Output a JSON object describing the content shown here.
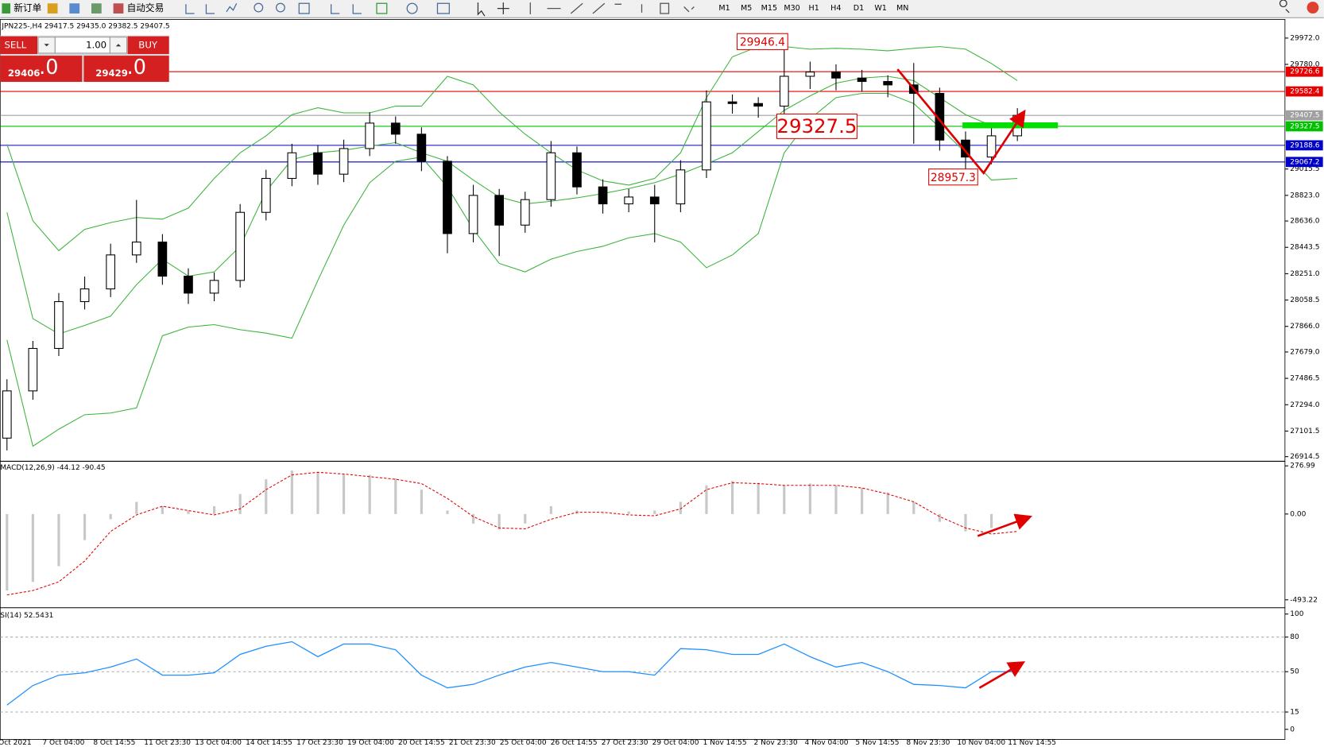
{
  "toolbar": {
    "new_order": "新订单",
    "auto_trade": "自动交易",
    "timeframes": [
      "M1",
      "M5",
      "M15",
      "M30",
      "H1",
      "H4",
      "D1",
      "W1",
      "MN"
    ]
  },
  "trade_panel": {
    "sell": "SELL",
    "buy": "BUY",
    "volume": "1.00",
    "bid": "29406",
    "bid_frac": ".0",
    "ask": "29429",
    "ask_frac": ".0"
  },
  "time_axis": [
    "Oct 2021",
    "7 Oct 04:00",
    "8 Oct 14:55",
    "11 Oct 23:30",
    "13 Oct 04:00",
    "14 Oct 14:55",
    "17 Oct 23:30",
    "19 Oct 04:00",
    "20 Oct 14:55",
    "21 Oct 23:30",
    "25 Oct 04:00",
    "26 Oct 14:55",
    "27 Oct 23:30",
    "29 Oct 04:00",
    "1 Nov 14:55",
    "2 Nov 23:30",
    "4 Nov 04:00",
    "5 Nov 14:55",
    "8 Nov 23:30",
    "10 Nov 04:00",
    "11 Nov 14:55"
  ],
  "chart_data": [
    {
      "type": "candlestick",
      "title": "JPN225-,H4 29417.5 29435.0 29382.5 29407.5",
      "up_color": "#ffffff",
      "down_color": "#000000",
      "open": [
        27050,
        27395,
        27705,
        28047,
        28140,
        28388,
        28482,
        28233,
        28109,
        28202,
        28699,
        28947,
        29134,
        28978,
        29165,
        29351,
        29270,
        29072,
        28544,
        28823,
        28606,
        28792,
        29134,
        28885,
        28761,
        28811,
        28761,
        29009,
        29506,
        29494,
        29475,
        29693,
        29724,
        29680,
        29655,
        29630,
        29568,
        29227,
        29103,
        29258
      ],
      "high": [
        27480,
        27760,
        28110,
        28230,
        28470,
        28790,
        28540,
        28290,
        28260,
        28760,
        29010,
        29200,
        29190,
        29230,
        29430,
        29400,
        29320,
        29110,
        28900,
        28870,
        28850,
        29220,
        29180,
        28940,
        28870,
        28900,
        29080,
        29590,
        29560,
        29540,
        29946.4,
        29800,
        29780,
        29740,
        29700,
        29790,
        29610,
        29290,
        29330,
        29460
      ],
      "low": [
        26960,
        27330,
        27650,
        27990,
        28080,
        28330,
        28170,
        28030,
        28050,
        28150,
        28640,
        28890,
        28900,
        28920,
        29110,
        29200,
        29000,
        28400,
        28480,
        28380,
        28550,
        28740,
        28830,
        28690,
        28700,
        28480,
        28700,
        28950,
        29420,
        29390,
        29420,
        29600,
        29590,
        29580,
        29540,
        29200,
        29150,
        28957.3,
        29050,
        29220
      ],
      "close": [
        27395,
        27705,
        28047,
        28140,
        28388,
        28482,
        28233,
        28109,
        28202,
        28699,
        28947,
        29134,
        28978,
        29165,
        29351,
        29270,
        29072,
        28544,
        28823,
        28606,
        28792,
        29134,
        28885,
        28761,
        28811,
        28761,
        29009,
        29506,
        29494,
        29475,
        29693,
        29724,
        29680,
        29655,
        29630,
        29568,
        29227,
        29103,
        29258,
        29407.5
      ],
      "bands": {
        "color": "#3cb43c",
        "upper": [
          29196,
          28637,
          28419,
          28575,
          28624,
          28662,
          28649,
          28730,
          28947,
          29134,
          29258,
          29413,
          29463,
          29426,
          29426,
          29475,
          29475,
          29693,
          29630,
          29432,
          29270,
          29134,
          29009,
          28929,
          28898,
          28947,
          29134,
          29537,
          29835,
          29910,
          29910,
          29891,
          29897,
          29891,
          29879,
          29897,
          29910,
          29891,
          29786,
          29661
        ],
        "middle": [
          28699,
          27923,
          27811,
          27873,
          27941,
          28171,
          28357,
          28233,
          28264,
          28451,
          28854,
          29084,
          29134,
          29152,
          29183,
          29208,
          29134,
          29072,
          28935,
          28811,
          28761,
          28780,
          28805,
          28836,
          28873,
          28916,
          28978,
          29053,
          29134,
          29289,
          29444,
          29550,
          29643,
          29680,
          29693,
          29661,
          29537,
          29413,
          29332,
          29351
        ],
        "lower": [
          27767,
          26991,
          27115,
          27221,
          27233,
          27271,
          27798,
          27861,
          27879,
          27842,
          27817,
          27780,
          28202,
          28606,
          28916,
          29072,
          29103,
          28885,
          28575,
          28326,
          28264,
          28357,
          28413,
          28451,
          28513,
          28544,
          28482,
          28295,
          28388,
          28544,
          29134,
          29382,
          29537,
          29568,
          29568,
          29494,
          29320,
          29134,
          28935,
          28947
        ]
      },
      "levels": [
        {
          "value": 29726.6,
          "color": "#e60000"
        },
        {
          "value": 29582.4,
          "color": "#e60000"
        },
        {
          "value": 29407.5,
          "color": "#a0a0a0"
        },
        {
          "value": 29327.5,
          "color": "#00c000"
        },
        {
          "value": 29188.6,
          "color": "#0000c8"
        },
        {
          "value": 29067.2,
          "color": "#0000c8"
        }
      ],
      "annotations": [
        29946.4,
        29327.5,
        28957.3
      ],
      "ylim": [
        26890,
        30096
      ],
      "yticks": [
        {
          "value": 29972,
          "label": "29972.0"
        },
        {
          "value": 29780,
          "label": "29780.0"
        },
        29015.5,
        {
          "value": 28823,
          "label": "28823.0"
        },
        {
          "value": 28636,
          "label": "28636.0"
        },
        28443.5,
        {
          "value": 28251,
          "label": "28251.0"
        },
        28058.5,
        {
          "value": 27866,
          "label": "27866.0"
        },
        {
          "value": 27679,
          "label": "27679.0"
        },
        27486.5,
        {
          "value": 27294,
          "label": "27294.0"
        },
        27101.5,
        26914.5
      ]
    },
    {
      "type": "macd",
      "title": "MACD(12,26,9) -44.12 -90.45",
      "histogram_color": "#c8c8c8",
      "signal_color": "#e00000",
      "values": [
        -440,
        -390,
        -300,
        -150,
        -30,
        70,
        45,
        20,
        45,
        115,
        200,
        250,
        240,
        230,
        225,
        205,
        140,
        20,
        -55,
        -90,
        -55,
        45,
        20,
        5,
        15,
        20,
        70,
        165,
        190,
        180,
        165,
        175,
        165,
        150,
        125,
        70,
        -45,
        -100,
        -80,
        -30
      ],
      "signal": [
        -465,
        -440,
        -390,
        -270,
        -100,
        -5,
        45,
        20,
        -5,
        30,
        140,
        225,
        240,
        230,
        215,
        200,
        175,
        90,
        -15,
        -80,
        -85,
        -30,
        10,
        10,
        -5,
        -10,
        30,
        140,
        180,
        175,
        165,
        165,
        165,
        150,
        115,
        70,
        -15,
        -80,
        -115,
        -100
      ],
      "ylim": [
        -529,
        296
      ],
      "yticks": [
        276.99,
        {
          "value": 0,
          "label": "0.00"
        },
        -493.22
      ]
    },
    {
      "type": "line",
      "title": "SI(14) 52.5431",
      "color": "#1e90ff",
      "values": [
        21,
        38,
        47,
        49,
        54,
        61,
        47,
        47,
        49,
        65,
        72,
        76,
        63,
        74,
        74,
        69,
        47,
        36,
        39,
        47,
        54,
        58,
        54,
        50,
        50,
        47,
        70,
        69,
        65,
        65,
        74,
        63,
        54,
        58,
        50,
        39,
        38,
        36,
        50,
        50
      ],
      "levels": [
        80,
        50,
        15
      ],
      "ylim": [
        -8,
        104
      ],
      "yticks": [
        100,
        80,
        50,
        15,
        0
      ]
    }
  ]
}
